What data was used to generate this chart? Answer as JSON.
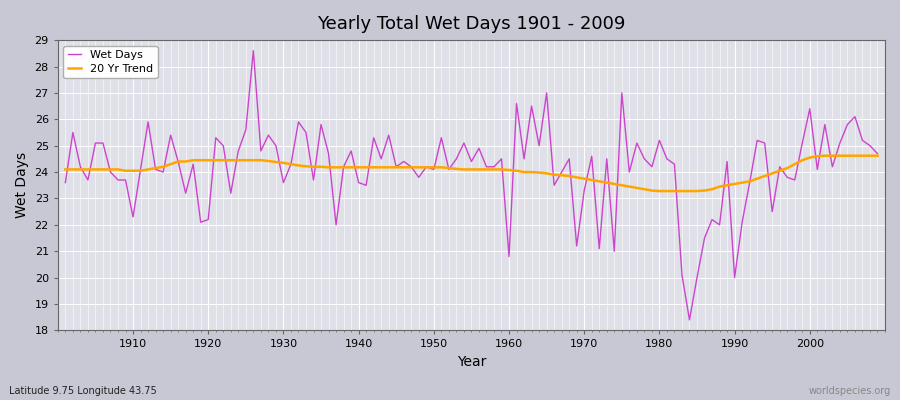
{
  "title": "Yearly Total Wet Days 1901 - 2009",
  "xlabel": "Year",
  "ylabel": "Wet Days",
  "subtitle": "Latitude 9.75 Longitude 43.75",
  "watermark": "worldspecies.org",
  "line_color": "#CC44CC",
  "trend_color": "#FFA500",
  "bg_color": "#E8E8F0",
  "fig_bg_color": "#D8D8E0",
  "ylim": [
    18,
    29
  ],
  "yticks": [
    18,
    19,
    20,
    21,
    22,
    23,
    24,
    25,
    26,
    27,
    28,
    29
  ],
  "years": [
    1901,
    1902,
    1903,
    1904,
    1905,
    1906,
    1907,
    1908,
    1909,
    1910,
    1911,
    1912,
    1913,
    1914,
    1915,
    1916,
    1917,
    1918,
    1919,
    1920,
    1921,
    1922,
    1923,
    1924,
    1925,
    1926,
    1927,
    1928,
    1929,
    1930,
    1931,
    1932,
    1933,
    1934,
    1935,
    1936,
    1937,
    1938,
    1939,
    1940,
    1941,
    1942,
    1943,
    1944,
    1945,
    1946,
    1947,
    1948,
    1949,
    1950,
    1951,
    1952,
    1953,
    1954,
    1955,
    1956,
    1957,
    1958,
    1959,
    1960,
    1961,
    1962,
    1963,
    1964,
    1965,
    1966,
    1967,
    1968,
    1969,
    1970,
    1971,
    1972,
    1973,
    1974,
    1975,
    1976,
    1977,
    1978,
    1979,
    1980,
    1981,
    1982,
    1983,
    1984,
    1985,
    1986,
    1987,
    1988,
    1989,
    1990,
    1991,
    1992,
    1993,
    1994,
    1995,
    1996,
    1997,
    1998,
    1999,
    2000,
    2001,
    2002,
    2003,
    2004,
    2005,
    2006,
    2007,
    2008,
    2009
  ],
  "wet_days": [
    23.6,
    25.5,
    24.2,
    23.7,
    25.1,
    25.1,
    24.0,
    23.7,
    23.7,
    22.3,
    24.1,
    25.9,
    24.1,
    24.0,
    25.4,
    24.4,
    23.2,
    24.3,
    22.1,
    22.2,
    25.3,
    25.0,
    23.2,
    24.8,
    25.6,
    28.6,
    24.8,
    25.4,
    25.0,
    23.6,
    24.3,
    25.9,
    25.5,
    23.7,
    25.8,
    24.7,
    22.0,
    24.2,
    24.8,
    23.6,
    23.5,
    25.3,
    24.5,
    25.4,
    24.2,
    24.4,
    24.2,
    23.8,
    24.2,
    24.1,
    25.3,
    24.1,
    24.5,
    25.1,
    24.4,
    24.9,
    24.2,
    24.2,
    24.5,
    20.8,
    26.6,
    24.5,
    26.5,
    25.0,
    27.0,
    23.5,
    24.0,
    24.5,
    21.2,
    23.3,
    24.6,
    21.1,
    24.5,
    21.0,
    27.0,
    24.0,
    25.1,
    24.5,
    24.2,
    25.2,
    24.5,
    24.3,
    20.1,
    18.4,
    20.0,
    21.5,
    22.2,
    22.0,
    24.4,
    20.0,
    22.1,
    23.6,
    25.2,
    25.1,
    22.5,
    24.2,
    23.8,
    23.7,
    25.1,
    26.4,
    24.1,
    25.8,
    24.2,
    25.1,
    25.8,
    26.1,
    25.2,
    25.0,
    24.7
  ],
  "trend": [
    24.1,
    24.1,
    24.1,
    24.1,
    24.1,
    24.1,
    24.1,
    24.1,
    24.05,
    24.05,
    24.05,
    24.1,
    24.15,
    24.2,
    24.3,
    24.4,
    24.4,
    24.45,
    24.45,
    24.45,
    24.45,
    24.45,
    24.45,
    24.45,
    24.45,
    24.45,
    24.45,
    24.42,
    24.38,
    24.35,
    24.3,
    24.25,
    24.22,
    24.2,
    24.2,
    24.18,
    24.18,
    24.18,
    24.18,
    24.18,
    24.18,
    24.18,
    24.18,
    24.18,
    24.18,
    24.18,
    24.18,
    24.18,
    24.18,
    24.18,
    24.18,
    24.15,
    24.12,
    24.1,
    24.1,
    24.1,
    24.1,
    24.1,
    24.1,
    24.08,
    24.05,
    24.0,
    24.0,
    23.98,
    23.95,
    23.9,
    23.88,
    23.85,
    23.8,
    23.75,
    23.7,
    23.65,
    23.6,
    23.55,
    23.5,
    23.45,
    23.4,
    23.35,
    23.3,
    23.28,
    23.28,
    23.28,
    23.28,
    23.28,
    23.28,
    23.3,
    23.35,
    23.45,
    23.5,
    23.55,
    23.6,
    23.65,
    23.75,
    23.85,
    23.95,
    24.05,
    24.15,
    24.3,
    24.45,
    24.55,
    24.6,
    24.62,
    24.62,
    24.62,
    24.62,
    24.62,
    24.62,
    24.62,
    24.62
  ]
}
